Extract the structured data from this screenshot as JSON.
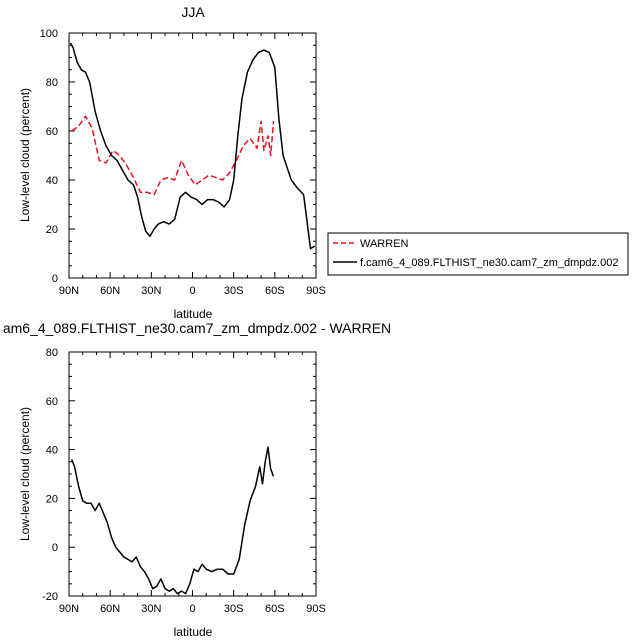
{
  "chart_data": [
    {
      "type": "line",
      "title": "JJA",
      "xlabel": "latitude",
      "ylabel": "Low-level cloud (percent)",
      "xlim": [
        90,
        -90
      ],
      "ylim": [
        0,
        100
      ],
      "x_ticks": [
        90,
        60,
        30,
        0,
        -30,
        -60,
        -90
      ],
      "x_tick_labels": [
        "90N",
        "60N",
        "30N",
        "0",
        "30S",
        "60S",
        "90S"
      ],
      "y_ticks": [
        0,
        20,
        40,
        60,
        80,
        100
      ],
      "y_tick_labels": [
        "0",
        "20",
        "40",
        "60",
        "80",
        "100"
      ],
      "legend_position": "right",
      "series": [
        {
          "name": "WARREN",
          "color": "#e8141e",
          "dash": "dashed",
          "x": [
            88,
            83,
            78,
            73,
            68,
            63,
            58,
            53,
            48,
            43,
            38,
            33,
            28,
            23,
            18,
            13,
            8,
            3,
            -2,
            -7,
            -12,
            -17,
            -22,
            -27,
            -32,
            -37,
            -42,
            -47,
            -50,
            -52,
            -55,
            -57,
            -59
          ],
          "y": [
            60,
            62,
            66,
            61,
            48,
            47,
            52,
            50,
            46,
            41,
            35,
            35,
            34,
            40,
            41,
            40,
            48,
            42,
            38,
            40,
            42,
            41,
            40,
            43,
            48,
            54,
            57,
            53,
            64,
            52,
            58,
            50,
            64
          ]
        },
        {
          "name": "f.cam6_4_089.FLTHIST_ne30.cam7_zm_dmpdz.002",
          "color": "#000000",
          "dash": "solid",
          "x": [
            89,
            87,
            84,
            81,
            78,
            75,
            71,
            67,
            63,
            59,
            55,
            51,
            47,
            43,
            40,
            37,
            34,
            31,
            28,
            25,
            21,
            17,
            13,
            9,
            5,
            1,
            -3,
            -7,
            -11,
            -15,
            -19,
            -23,
            -27,
            -30,
            -33,
            -36,
            -40,
            -44,
            -48,
            -52,
            -56,
            -60,
            -63,
            -66,
            -69,
            -72,
            -76,
            -81,
            -86,
            -89
          ],
          "y": [
            96,
            94,
            88,
            85,
            84,
            80,
            68,
            60,
            54,
            50,
            48,
            44,
            40,
            38,
            33,
            25,
            19,
            17,
            20,
            22,
            23,
            22,
            24,
            33,
            35,
            33,
            32,
            30,
            32,
            32,
            31,
            29,
            32,
            40,
            58,
            73,
            84,
            89,
            92,
            93,
            92,
            86,
            65,
            50,
            45,
            40,
            37,
            34,
            12,
            13
          ]
        }
      ]
    },
    {
      "type": "line",
      "title": "am6_4_089.FLTHIST_ne30.cam7_zm_dmpdz.002 - WARREN",
      "xlabel": "latitude",
      "ylabel": "Low-level cloud (percent)",
      "xlim": [
        90,
        -90
      ],
      "ylim": [
        -20,
        80
      ],
      "x_ticks": [
        90,
        60,
        30,
        0,
        -30,
        -60,
        -90
      ],
      "x_tick_labels": [
        "90N",
        "60N",
        "30N",
        "0",
        "30S",
        "60S",
        "90S"
      ],
      "y_ticks": [
        -20,
        0,
        20,
        40,
        60,
        80
      ],
      "y_tick_labels": [
        "-20",
        "0",
        "20",
        "40",
        "60",
        "80"
      ],
      "series": [
        {
          "color": "#000000",
          "dash": "solid",
          "x": [
            88,
            86,
            83,
            80,
            77,
            74,
            71,
            68,
            65,
            62,
            59,
            56,
            53,
            50,
            47,
            44,
            41,
            38,
            35,
            32,
            29,
            26,
            23,
            20,
            17,
            14,
            11,
            8,
            5,
            2,
            -1,
            -4,
            -7,
            -10,
            -14,
            -18,
            -22,
            -26,
            -30,
            -34,
            -38,
            -42,
            -46,
            -49,
            -51,
            -53,
            -55,
            -57,
            -59
          ],
          "y": [
            36,
            33,
            25,
            19,
            18,
            18,
            15,
            18,
            14,
            10,
            4,
            0,
            -2,
            -4,
            -5,
            -6,
            -4,
            -8,
            -10,
            -13,
            -17,
            -16,
            -13,
            -17,
            -18,
            -17,
            -19,
            -18,
            -19,
            -15,
            -9,
            -10,
            -7,
            -9,
            -10,
            -9,
            -9,
            -11,
            -11,
            -5,
            9,
            19,
            25,
            33,
            26,
            35,
            41,
            32,
            29
          ]
        }
      ]
    }
  ]
}
